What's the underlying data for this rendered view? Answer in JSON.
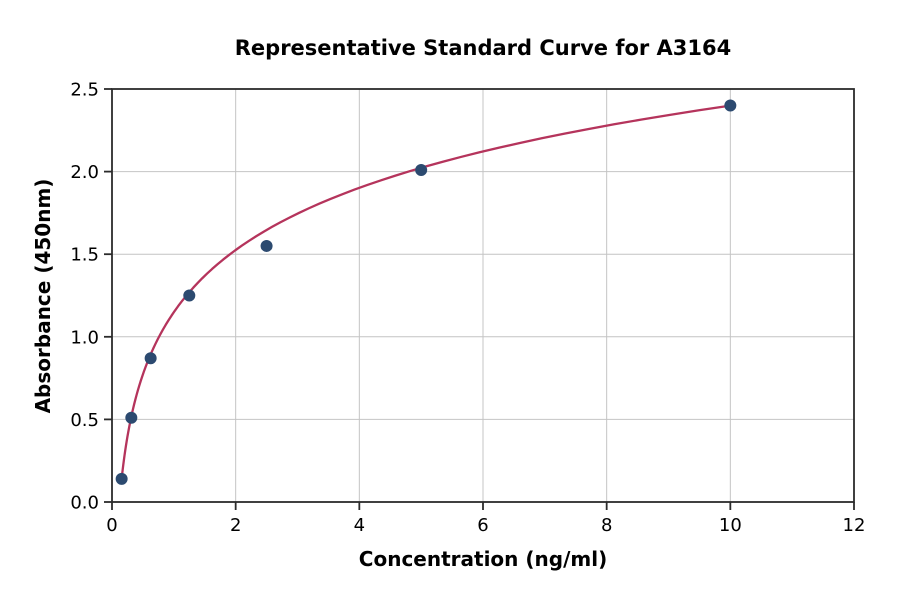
{
  "chart_data": {
    "type": "scatter",
    "title": "Representative Standard Curve for A3164",
    "xlabel": "Concentration (ng/ml)",
    "ylabel": "Absorbance (450nm)",
    "series": [
      {
        "name": "standard-points",
        "x": [
          0.156,
          0.3125,
          0.625,
          1.25,
          2.5,
          5,
          10
        ],
        "y": [
          0.14,
          0.51,
          0.87,
          1.25,
          1.55,
          2.01,
          2.4
        ],
        "marker": "circle",
        "marker_color": "#2c4a70",
        "marker_radius": 5.5
      }
    ],
    "fit_curve": {
      "model": "logarithmic",
      "equation": "y = 0.543*ln(x) + 1.149",
      "a": 0.543,
      "b": 1.149,
      "x_start": 0.156,
      "x_end": 10,
      "color": "#b5345c",
      "width": 2.3
    },
    "xlim": [
      0,
      12
    ],
    "ylim": [
      0,
      2.5
    ],
    "xticks": [
      0,
      2,
      4,
      6,
      8,
      10,
      12
    ],
    "xtick_labels": [
      "0",
      "2",
      "4",
      "6",
      "8",
      "10",
      "12"
    ],
    "yticks": [
      0,
      0.5,
      1,
      1.5,
      2,
      2.5
    ],
    "ytick_labels": [
      "0.0",
      "0.5",
      "1.0",
      "1.5",
      "2.0",
      "2.5"
    ],
    "grid": true,
    "legend": "none",
    "colors": {
      "grid": "#c4c4c4",
      "axis": "#2b2b2b",
      "text": "#000000",
      "background": "#ffffff"
    }
  }
}
